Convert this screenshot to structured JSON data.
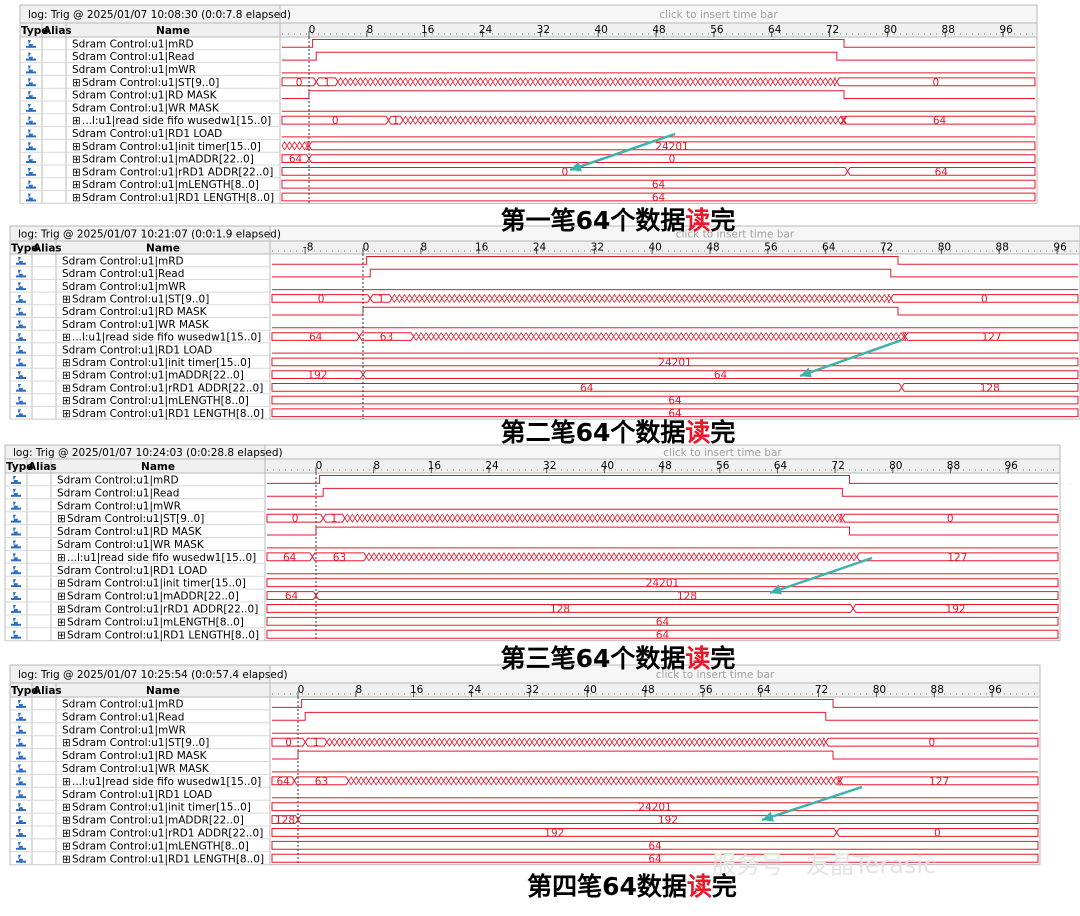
{
  "panels": [
    {
      "log": "log: Trig @ 2025/01/07 10:08:30 (0:0:7.8 elapsed)",
      "hint": "click to insert time bar",
      "columns": [
        "Type",
        "Alias",
        "Name"
      ],
      "ruler": [
        0,
        8,
        16,
        24,
        32,
        40,
        48,
        56,
        64,
        72,
        80,
        88,
        96
      ],
      "signals": [
        {
          "name": "Sdram Control:u1|mRD",
          "values": []
        },
        {
          "name": "Sdram Control:u1|Read",
          "values": []
        },
        {
          "name": "Sdram Control:u1|mWR",
          "values": []
        },
        {
          "name": "Sdram Control:u1|ST[9..0]",
          "values": [
            "0",
            "1",
            "0"
          ]
        },
        {
          "name": "Sdram Control:u1|RD MASK",
          "values": []
        },
        {
          "name": "Sdram Control:u1|WR MASK",
          "values": []
        },
        {
          "name": "...l:u1|read side fifo wusedw1[15..0]",
          "values": [
            "0",
            "1",
            "64"
          ]
        },
        {
          "name": "Sdram Control:u1|RD1 LOAD",
          "values": []
        },
        {
          "name": "Sdram Control:u1|init timer[15..0]",
          "values": [
            "24201"
          ]
        },
        {
          "name": "Sdram Control:u1|mADDR[22..0]",
          "values": [
            "64",
            "0"
          ]
        },
        {
          "name": "Sdram Control:u1|rRD1 ADDR[22..0]",
          "values": [
            "0",
            "64"
          ]
        },
        {
          "name": "Sdram Control:u1|mLENGTH[8..0]",
          "values": [
            "64"
          ]
        },
        {
          "name": "Sdram Control:u1|RD1 LENGTH[8..0]",
          "values": [
            "64"
          ]
        }
      ]
    },
    {
      "log": "log: Trig @ 2025/01/07 10:21:07 (0:0:1.9 elapsed)",
      "hint": "click to insert time bar",
      "columns": [
        "Type",
        "Alias",
        "Name"
      ],
      "ruler": [
        -8,
        0,
        8,
        16,
        24,
        32,
        40,
        48,
        56,
        64,
        72,
        80,
        88,
        96
      ],
      "signals": [
        {
          "name": "Sdram Control:u1|mRD",
          "values": []
        },
        {
          "name": "Sdram Control:u1|Read",
          "values": []
        },
        {
          "name": "Sdram Control:u1|mWR",
          "values": []
        },
        {
          "name": "Sdram Control:u1|ST[9..0]",
          "values": [
            "0",
            "1",
            "0"
          ]
        },
        {
          "name": "Sdram Control:u1|RD MASK",
          "values": []
        },
        {
          "name": "Sdram Control:u1|WR MASK",
          "values": []
        },
        {
          "name": "...l:u1|read side fifo wusedw1[15..0]",
          "values": [
            "64",
            "63",
            "127"
          ]
        },
        {
          "name": "Sdram Control:u1|RD1 LOAD",
          "values": []
        },
        {
          "name": "Sdram Control:u1|init timer[15..0]",
          "values": [
            "24201"
          ]
        },
        {
          "name": "Sdram Control:u1|mADDR[22..0]",
          "values": [
            "192",
            "64"
          ]
        },
        {
          "name": "Sdram Control:u1|rRD1 ADDR[22..0]",
          "values": [
            "64",
            "128"
          ]
        },
        {
          "name": "Sdram Control:u1|mLENGTH[8..0]",
          "values": [
            "64"
          ]
        },
        {
          "name": "Sdram Control:u1|RD1 LENGTH[8..0]",
          "values": [
            "64"
          ]
        }
      ]
    },
    {
      "log": "log: Trig @ 2025/01/07 10:24:03 (0:0:28.8 elapsed)",
      "hint": "click to insert time bar",
      "columns": [
        "Type",
        "Alias",
        "Name"
      ],
      "ruler": [
        0,
        8,
        16,
        24,
        32,
        40,
        48,
        56,
        64,
        72,
        80,
        88,
        96
      ],
      "signals": [
        {
          "name": "Sdram Control:u1|mRD",
          "values": []
        },
        {
          "name": "Sdram Control:u1|Read",
          "values": []
        },
        {
          "name": "Sdram Control:u1|mWR",
          "values": []
        },
        {
          "name": "Sdram Control:u1|ST[9..0]",
          "values": [
            "0",
            "1",
            "0"
          ]
        },
        {
          "name": "Sdram Control:u1|RD MASK",
          "values": []
        },
        {
          "name": "Sdram Control:u1|WR MASK",
          "values": []
        },
        {
          "name": "...l:u1|read side fifo wusedw1[15..0]",
          "values": [
            "64",
            "63",
            "127"
          ]
        },
        {
          "name": "Sdram Control:u1|RD1 LOAD",
          "values": []
        },
        {
          "name": "Sdram Control:u1|init timer[15..0]",
          "values": [
            "24201"
          ]
        },
        {
          "name": "Sdram Control:u1|mADDR[22..0]",
          "values": [
            "64",
            "128"
          ]
        },
        {
          "name": "Sdram Control:u1|rRD1 ADDR[22..0]",
          "values": [
            "128",
            "192"
          ]
        },
        {
          "name": "Sdram Control:u1|mLENGTH[8..0]",
          "values": [
            "64"
          ]
        },
        {
          "name": "Sdram Control:u1|RD1 LENGTH[8..0]",
          "values": [
            "64"
          ]
        }
      ]
    },
    {
      "log": "log: Trig @ 2025/01/07 10:25:54 (0:0:57.4 elapsed)",
      "hint": "click to insert time bar",
      "columns": [
        "Type",
        "Alias",
        "Name"
      ],
      "ruler": [
        0,
        8,
        16,
        24,
        32,
        40,
        48,
        56,
        64,
        72,
        80,
        88,
        96
      ],
      "signals": [
        {
          "name": "Sdram Control:u1|mRD",
          "values": []
        },
        {
          "name": "Sdram Control:u1|Read",
          "values": []
        },
        {
          "name": "Sdram Control:u1|mWR",
          "values": []
        },
        {
          "name": "Sdram Control:u1|ST[9..0]",
          "values": [
            "0",
            "1",
            "0"
          ]
        },
        {
          "name": "Sdram Control:u1|RD MASK",
          "values": []
        },
        {
          "name": "Sdram Control:u1|WR MASK",
          "values": []
        },
        {
          "name": "...l:u1|read side fifo wusedw1[15..0]",
          "values": [
            "64",
            "63",
            "127"
          ]
        },
        {
          "name": "Sdram Control:u1|RD1 LOAD",
          "values": []
        },
        {
          "name": "Sdram Control:u1|init timer[15..0]",
          "values": [
            "24201"
          ]
        },
        {
          "name": "Sdram Control:u1|mADDR[22..0]",
          "values": [
            "128",
            "192"
          ]
        },
        {
          "name": "Sdram Control:u1|rRD1 ADDR[22..0]",
          "values": [
            "192",
            "0"
          ]
        },
        {
          "name": "Sdram Control:u1|mLENGTH[8..0]",
          "values": [
            "64"
          ]
        },
        {
          "name": "Sdram Control:u1|RD1 LENGTH[8..0]",
          "values": [
            "64"
          ]
        }
      ]
    }
  ],
  "captions": [
    {
      "text": "第一笔64个数据",
      "highlight": "读",
      "end": "完"
    },
    {
      "text": "第二笔64个数据",
      "highlight": "读",
      "end": "完"
    },
    {
      "text": "第三笔64个数据",
      "highlight": "读",
      "end": "完"
    },
    {
      "text": "第四笔64数据",
      "highlight": "读",
      "end": "完"
    }
  ],
  "watermark": [
    "服务号",
    "友晶Terasic"
  ]
}
